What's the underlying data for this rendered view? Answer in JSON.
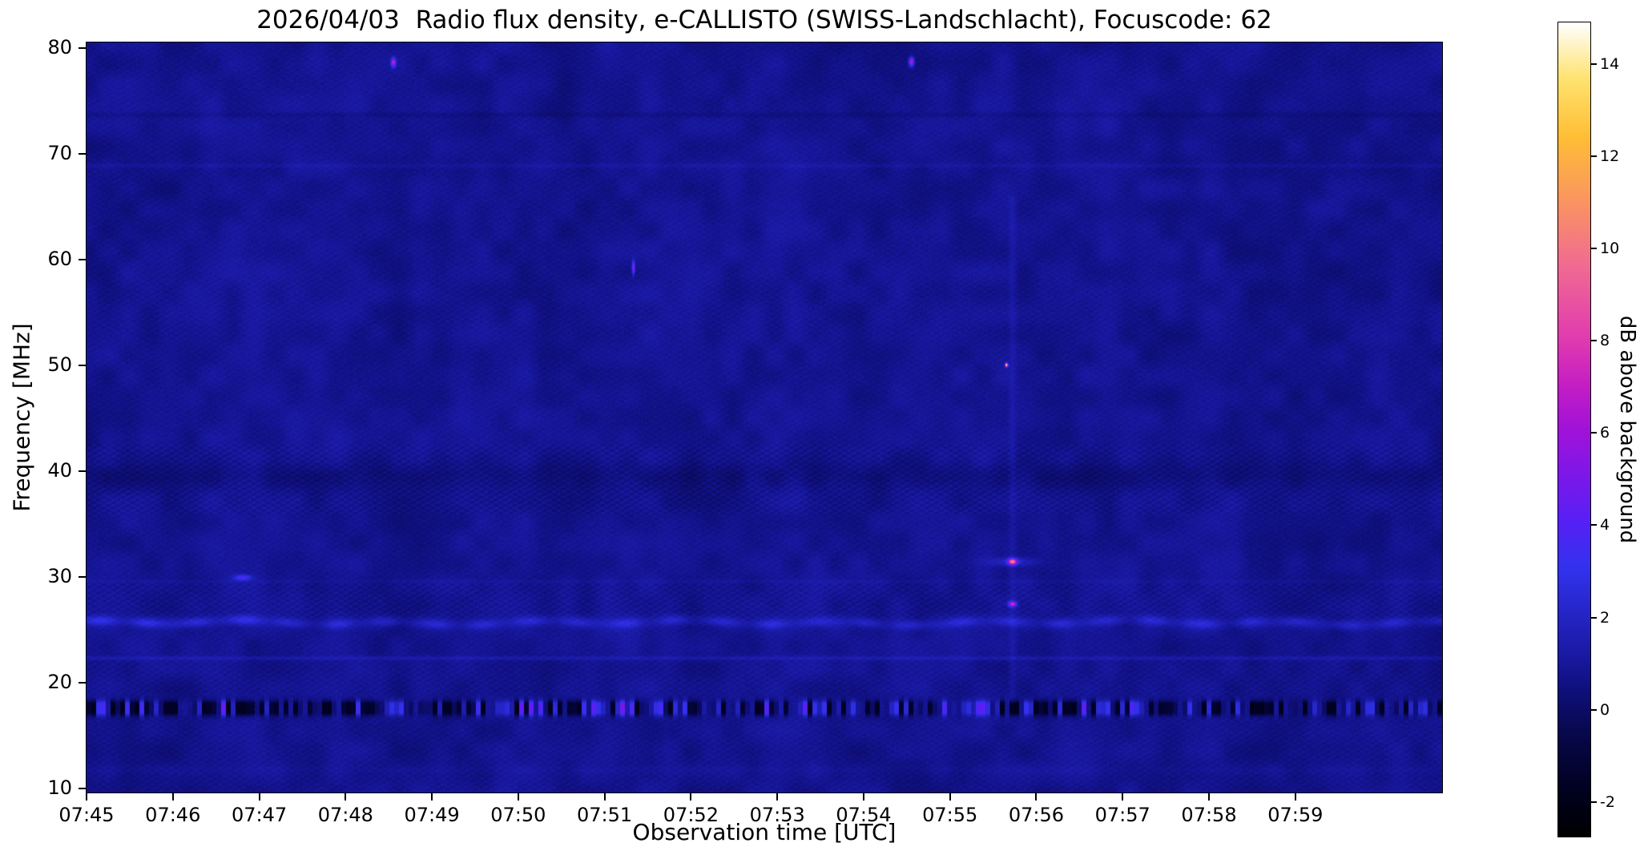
{
  "chart_data": {
    "type": "heatmap",
    "title": "2026/04/03  Radio flux density, e-CALLISTO (SWISS-Landschlacht), Focuscode: 62",
    "xlabel": "Observation time [UTC]",
    "ylabel": "Frequency [MHz]",
    "x_range_minutes": [
      0,
      15.7
    ],
    "y_range": [
      9.65,
      80.55
    ],
    "x_ticks": [
      {
        "label": "07:45",
        "t_min": 0
      },
      {
        "label": "07:46",
        "t_min": 1
      },
      {
        "label": "07:47",
        "t_min": 2
      },
      {
        "label": "07:48",
        "t_min": 3
      },
      {
        "label": "07:49",
        "t_min": 4
      },
      {
        "label": "07:50",
        "t_min": 5
      },
      {
        "label": "07:51",
        "t_min": 6
      },
      {
        "label": "07:52",
        "t_min": 7
      },
      {
        "label": "07:53",
        "t_min": 8
      },
      {
        "label": "07:54",
        "t_min": 9
      },
      {
        "label": "07:55",
        "t_min": 10
      },
      {
        "label": "07:56",
        "t_min": 11
      },
      {
        "label": "07:57",
        "t_min": 12
      },
      {
        "label": "07:58",
        "t_min": 13
      },
      {
        "label": "07:59",
        "t_min": 14
      }
    ],
    "y_ticks": [
      {
        "label": "80",
        "mhz": 80
      },
      {
        "label": "70",
        "mhz": 70
      },
      {
        "label": "60",
        "mhz": 60
      },
      {
        "label": "50",
        "mhz": 50
      },
      {
        "label": "40",
        "mhz": 40
      },
      {
        "label": "30",
        "mhz": 30
      },
      {
        "label": "20",
        "mhz": 20
      },
      {
        "label": "10",
        "mhz": 10
      }
    ],
    "colorbar": {
      "label": "dB above background",
      "range": [
        -2.75,
        14.9
      ],
      "ticks": [
        {
          "label": "-2",
          "db": -2
        },
        {
          "label": "0",
          "db": 0
        },
        {
          "label": "2",
          "db": 2
        },
        {
          "label": "4",
          "db": 4
        },
        {
          "label": "6",
          "db": 6
        },
        {
          "label": "8",
          "db": 8
        },
        {
          "label": "10",
          "db": 10
        },
        {
          "label": "12",
          "db": 12
        },
        {
          "label": "14",
          "db": 14
        }
      ],
      "colormap_stops": [
        [
          0.0,
          "#000000"
        ],
        [
          0.06,
          "#010122"
        ],
        [
          0.13,
          "#08084f"
        ],
        [
          0.185,
          "#101080"
        ],
        [
          0.213,
          "#17179b"
        ],
        [
          0.27,
          "#2424c4"
        ],
        [
          0.33,
          "#3232ee"
        ],
        [
          0.385,
          "#5520f5"
        ],
        [
          0.44,
          "#7a18ea"
        ],
        [
          0.5,
          "#a012d8"
        ],
        [
          0.555,
          "#c41ec4"
        ],
        [
          0.61,
          "#e03ab0"
        ],
        [
          0.7,
          "#f06a92"
        ],
        [
          0.78,
          "#fa9460"
        ],
        [
          0.86,
          "#ffbe35"
        ],
        [
          0.93,
          "#ffe26e"
        ],
        [
          1.0,
          "#ffffff"
        ]
      ]
    },
    "background": {
      "mean_db": 0.82,
      "pixel_noise_db": 0.5,
      "patch_noise_db": 0.62,
      "column_noise_db": 0.22
    },
    "bands": [
      {
        "kind": "rfi-speckle",
        "f_center": 17.62,
        "sigma": 0.4,
        "db_min": -1.9,
        "db_max": 3.6,
        "note": "broadband interference band: black dropouts alternating with bright blue bursts"
      },
      {
        "kind": "ribbon",
        "f_center": 25.72,
        "sigma": 0.32,
        "db": 1.0,
        "note": "wavy emission band, brighter before 07:47"
      },
      {
        "kind": "line",
        "f_center": 22.35,
        "sigma": 0.13,
        "db": 0.62
      },
      {
        "kind": "line",
        "f_center": 29.6,
        "sigma": 0.12,
        "db": 0.22
      },
      {
        "kind": "line",
        "f_center": 68.9,
        "sigma": 0.15,
        "db": 0.33
      },
      {
        "kind": "line",
        "f_center": 73.7,
        "sigma": 0.18,
        "db": -0.3
      },
      {
        "kind": "line",
        "f_center": 11.8,
        "sigma": 0.3,
        "db": 0.15
      },
      {
        "kind": "depression",
        "f_center": 39.6,
        "sigma": 0.9,
        "db": -0.42,
        "note": "dark band with chevron texture near 38-41 MHz"
      }
    ],
    "events": [
      {
        "label": "blue burst",
        "t_min": 1.8,
        "freq_mhz": 30.0,
        "db": 2.8,
        "sigma_t_min": 0.07,
        "sigma_f_mhz": 0.18
      },
      {
        "label": "point burst",
        "t_min": 3.55,
        "freq_mhz": 78.7,
        "db": 6.5,
        "sigma_t_min": 0.018,
        "sigma_f_mhz": 0.28
      },
      {
        "label": "point burst",
        "t_min": 9.55,
        "freq_mhz": 78.75,
        "db": 6.5,
        "sigma_t_min": 0.02,
        "sigma_f_mhz": 0.28
      },
      {
        "label": "narrowband dash",
        "t_min": 6.33,
        "freq_mhz": 59.3,
        "db": 5.5,
        "sigma_t_min": 0.01,
        "sigma_f_mhz": 0.42
      },
      {
        "label": "pink burst",
        "t_min": 10.72,
        "freq_mhz": 31.5,
        "db": 8.5,
        "sigma_t_min": 0.035,
        "sigma_f_mhz": 0.2
      },
      {
        "label": "pink burst halo",
        "t_min": 10.72,
        "freq_mhz": 31.5,
        "db": 1.4,
        "sigma_t_min": 0.2,
        "sigma_f_mhz": 0.28
      },
      {
        "label": "pink burst secondary",
        "t_min": 10.72,
        "freq_mhz": 27.5,
        "db": 6.5,
        "sigma_t_min": 0.03,
        "sigma_f_mhz": 0.17
      },
      {
        "label": "white point",
        "t_min": 10.65,
        "freq_mhz": 50.1,
        "db": 13,
        "sigma_t_min": 0.007,
        "sigma_f_mhz": 0.12
      }
    ],
    "vertical_enhancement": {
      "t_min": 10.72,
      "f_low": 18,
      "f_high": 66,
      "db": 0.45,
      "sigma_t_min": 0.03
    }
  }
}
